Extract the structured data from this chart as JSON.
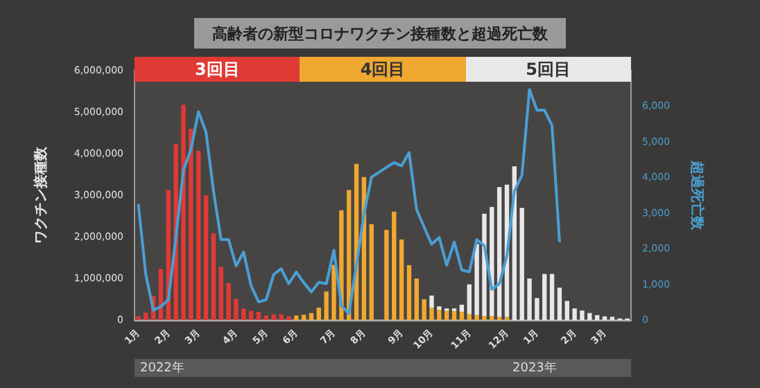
{
  "chart_data": {
    "type": "bar",
    "title": "高齢者の新型コロナワクチン接種数と超過死亡数",
    "ylabel": "ワクチン接種数",
    "y2label": "超過死亡数",
    "categories": [
      "1月",
      null,
      null,
      null,
      "2月",
      null,
      null,
      null,
      "3月",
      null,
      null,
      null,
      null,
      "4月",
      null,
      null,
      null,
      "5月",
      null,
      null,
      null,
      "6月",
      null,
      null,
      null,
      null,
      "7月",
      null,
      null,
      null,
      "8月",
      null,
      null,
      null,
      null,
      "9月",
      null,
      null,
      null,
      "10月",
      null,
      null,
      null,
      null,
      "11月",
      null,
      null,
      null,
      null,
      "12月",
      null,
      null,
      null,
      "1月",
      null,
      null,
      null,
      null,
      "2月",
      null,
      null,
      null,
      "3月",
      null,
      null,
      null
    ],
    "stacked": true,
    "legend": "top",
    "grid": false,
    "series": [
      {
        "name": "3回目",
        "color": "#e03a36",
        "values": [
          90000,
          180000,
          580000,
          1230000,
          3130000,
          4230000,
          5180000,
          4600000,
          4070000,
          3000000,
          2090000,
          1280000,
          890000,
          510000,
          280000,
          220000,
          200000,
          110000,
          140000,
          140000,
          90000,
          null,
          null,
          null,
          null,
          null,
          null,
          null,
          null,
          null,
          null,
          null,
          null,
          null,
          null,
          null,
          null,
          null,
          null,
          null,
          null,
          null,
          null,
          null,
          null,
          null,
          null,
          null,
          null,
          null,
          null,
          null,
          null,
          null,
          null,
          null,
          null,
          null,
          null,
          null,
          null,
          null,
          null,
          null,
          null,
          null
        ]
      },
      {
        "name": "4回目",
        "color": "#f0a830",
        "values": [
          null,
          null,
          null,
          null,
          null,
          null,
          null,
          null,
          null,
          null,
          null,
          null,
          null,
          null,
          null,
          null,
          null,
          null,
          null,
          null,
          null,
          110000,
          130000,
          170000,
          300000,
          690000,
          1330000,
          2640000,
          3130000,
          3760000,
          3440000,
          2310000,
          null,
          2170000,
          2610000,
          1940000,
          1320000,
          1000000,
          500000,
          300000,
          250000,
          220000,
          220000,
          200000,
          150000,
          120000,
          100000,
          100000,
          80000,
          80000,
          null,
          null,
          null,
          null,
          null,
          null,
          null,
          null,
          null,
          null,
          null,
          null,
          null,
          null,
          null,
          null
        ]
      },
      {
        "name": "5回目",
        "color": "#e8e8e8",
        "values": [
          null,
          null,
          null,
          null,
          null,
          null,
          null,
          null,
          null,
          null,
          null,
          null,
          null,
          null,
          null,
          null,
          null,
          null,
          null,
          null,
          null,
          null,
          null,
          null,
          null,
          null,
          null,
          null,
          null,
          null,
          null,
          null,
          null,
          null,
          null,
          null,
          null,
          null,
          null,
          290000,
          80000,
          60000,
          60000,
          170000,
          710000,
          1710000,
          2460000,
          2620000,
          3120000,
          3180000,
          3700000,
          2700000,
          1000000,
          530000,
          1110000,
          1110000,
          780000,
          460000,
          280000,
          230000,
          170000,
          120000,
          90000,
          80000,
          40000,
          40000
        ]
      },
      {
        "type": "line",
        "axis": "y2",
        "color": "#4a9fd4",
        "values": [
          3260,
          1280,
          280,
          380,
          570,
          2320,
          4200,
          4790,
          5850,
          5280,
          3620,
          2260,
          2260,
          1520,
          1910,
          960,
          510,
          570,
          1280,
          1440,
          1020,
          1350,
          1050,
          790,
          1060,
          1020,
          1960,
          400,
          180,
          1540,
          2970,
          4010,
          4150,
          4290,
          4420,
          4330,
          4700,
          3100,
          2610,
          2130,
          2320,
          1540,
          2190,
          1410,
          1350,
          2260,
          2090,
          860,
          1020,
          1800,
          3620,
          4070,
          6470,
          5890,
          5890,
          5460,
          2190,
          null,
          null,
          null,
          null,
          null,
          null,
          null,
          null,
          null
        ]
      }
    ],
    "ylim": [
      0,
      6000000
    ],
    "yticks": [
      0,
      {
        "value": 1000000,
        "label": "1,000,000"
      },
      {
        "value": 2000000,
        "label": "2,000,000"
      },
      {
        "value": 3000000,
        "label": "3,000,000"
      },
      {
        "value": 4000000,
        "label": "4,000,000"
      },
      {
        "value": 5000000,
        "label": "5,000,000"
      },
      {
        "value": 6000000,
        "label": "6,000,000"
      }
    ],
    "y2lim": [
      0,
      7000
    ],
    "y2ticks": [
      0,
      {
        "value": 1000,
        "label": "1,000"
      },
      {
        "value": 2000,
        "label": "2,000"
      },
      {
        "value": 3000,
        "label": "3,000"
      },
      {
        "value": 4000,
        "label": "4,000"
      },
      {
        "value": 5000,
        "label": "5,000"
      },
      {
        "value": 6000,
        "label": "6,000"
      }
    ],
    "marker": "none",
    "annotations": [
      "2022年",
      "2023年"
    ]
  }
}
